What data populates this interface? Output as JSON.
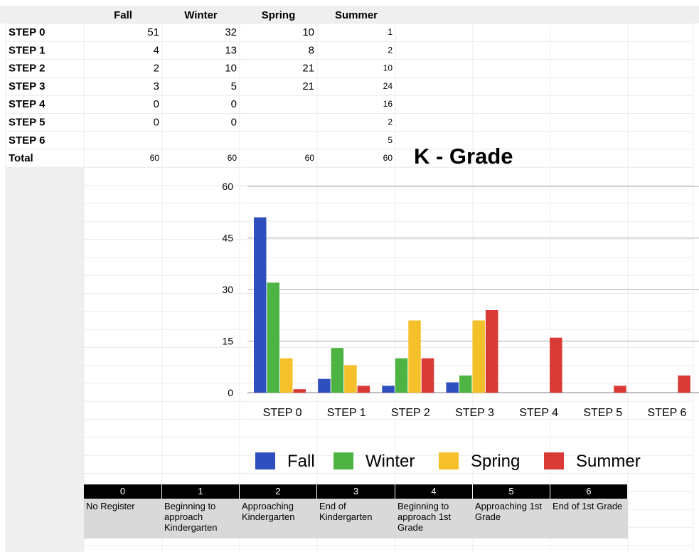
{
  "table": {
    "headers": [
      "Fall",
      "Winter",
      "Spring",
      "Summer"
    ],
    "rows": [
      {
        "label": "STEP 0",
        "cells": [
          51,
          32,
          10,
          1
        ]
      },
      {
        "label": "STEP 1",
        "cells": [
          4,
          13,
          8,
          2
        ]
      },
      {
        "label": "STEP 2",
        "cells": [
          2,
          10,
          21,
          10
        ]
      },
      {
        "label": "STEP 3",
        "cells": [
          3,
          5,
          21,
          24
        ]
      },
      {
        "label": "STEP 4",
        "cells": [
          0,
          0,
          null,
          16
        ]
      },
      {
        "label": "STEP 5",
        "cells": [
          0,
          0,
          null,
          2
        ]
      },
      {
        "label": "STEP 6",
        "cells": [
          null,
          null,
          null,
          5
        ]
      },
      {
        "label": "Total",
        "cells": [
          60,
          60,
          60,
          60
        ]
      }
    ]
  },
  "chart_data": {
    "type": "bar",
    "title": "K - Grade",
    "categories": [
      "STEP 0",
      "STEP 1",
      "STEP 2",
      "STEP 3",
      "STEP 4",
      "STEP 5",
      "STEP 6"
    ],
    "series": [
      {
        "name": "Fall",
        "color": "#2f4fbf",
        "values": [
          51,
          4,
          2,
          3,
          0,
          0,
          null
        ]
      },
      {
        "name": "Winter",
        "color": "#4db443",
        "values": [
          32,
          13,
          10,
          5,
          0,
          0,
          null
        ]
      },
      {
        "name": "Spring",
        "color": "#f5c02a",
        "values": [
          10,
          8,
          21,
          21,
          null,
          null,
          null
        ]
      },
      {
        "name": "Summer",
        "color": "#d83a35",
        "values": [
          1,
          2,
          10,
          24,
          16,
          2,
          5
        ]
      }
    ],
    "ylim": [
      0,
      60
    ],
    "yticks": [
      0,
      15,
      30,
      45,
      60
    ],
    "grid": true,
    "legend": "bottom"
  },
  "key": [
    {
      "code": 0,
      "label": "No Register"
    },
    {
      "code": 1,
      "label": "Beginning to approach Kindergarten"
    },
    {
      "code": 2,
      "label": "Approaching Kindergarten"
    },
    {
      "code": 3,
      "label": "End of Kindergarten"
    },
    {
      "code": 4,
      "label": "Beginning to approach 1st Grade"
    },
    {
      "code": 5,
      "label": "Approaching 1st Grade"
    },
    {
      "code": 6,
      "label": "End of 1st Grade"
    }
  ]
}
